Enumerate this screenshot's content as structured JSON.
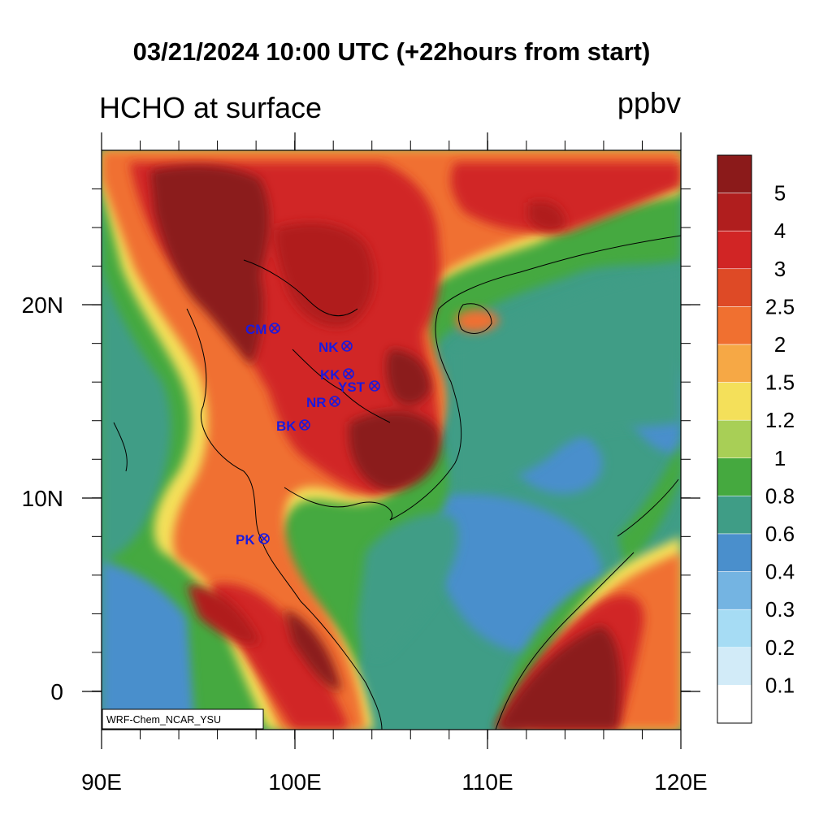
{
  "header": {
    "title": "03/21/2024 10:00 UTC (+22hours from start)",
    "left_title": "HCHO at surface",
    "units": "ppbv"
  },
  "map": {
    "lon_range": [
      90,
      120
    ],
    "lat_range": [
      -2,
      28
    ],
    "x_ticks": [
      "90E",
      "100E",
      "110E",
      "120E"
    ],
    "y_ticks": [
      "20N",
      "10N",
      "0"
    ],
    "credit": "WRF-Chem_NCAR_YSU",
    "sites": [
      {
        "name": "CM"
      },
      {
        "name": "NK"
      },
      {
        "name": "KK"
      },
      {
        "name": "YST"
      },
      {
        "name": "NR"
      },
      {
        "name": "BK"
      },
      {
        "name": "PK"
      }
    ]
  },
  "colorbar": {
    "labels": [
      "5",
      "4",
      "3",
      "2.5",
      "2",
      "1.5",
      "1.2",
      "1",
      "0.8",
      "0.6",
      "0.4",
      "0.3",
      "0.2",
      "0.1"
    ],
    "colors": [
      "#8b1a1a",
      "#b01e1e",
      "#d12525",
      "#de4a26",
      "#f07030",
      "#f6a845",
      "#f4e05a",
      "#a8cf56",
      "#45a93f",
      "#3f9d86",
      "#4a8fcc",
      "#74b4e2",
      "#a6dcf4",
      "#d2ebf8",
      "#ffffff"
    ]
  }
}
